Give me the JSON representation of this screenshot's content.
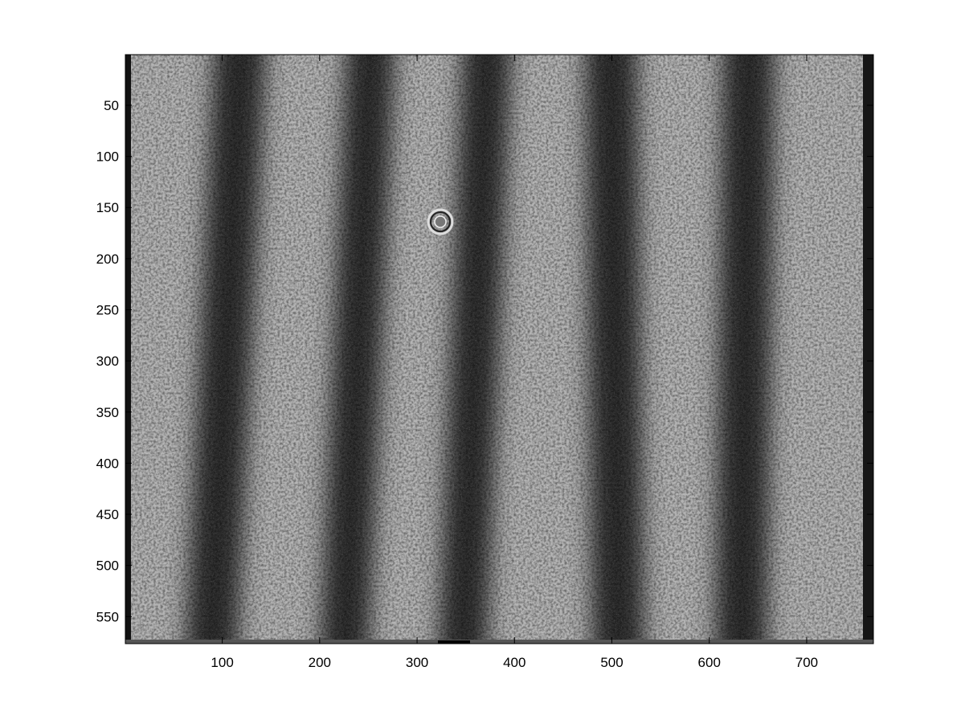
{
  "figure": {
    "image_description_type": "grayscale interference fringe image",
    "x_axis": {
      "ticks": [
        100,
        200,
        300,
        400,
        500,
        600,
        700
      ],
      "range": [
        0.5,
        768.5
      ]
    },
    "y_axis": {
      "ticks": [
        50,
        100,
        150,
        200,
        250,
        300,
        350,
        400,
        450,
        500,
        550
      ],
      "range": [
        0.5,
        576.5
      ],
      "direction": "reversed"
    },
    "colormap": "gray",
    "colors": {
      "background": "#ffffff",
      "dark_band": "#2a2a2a",
      "light_band": "#b4b4b4"
    }
  }
}
